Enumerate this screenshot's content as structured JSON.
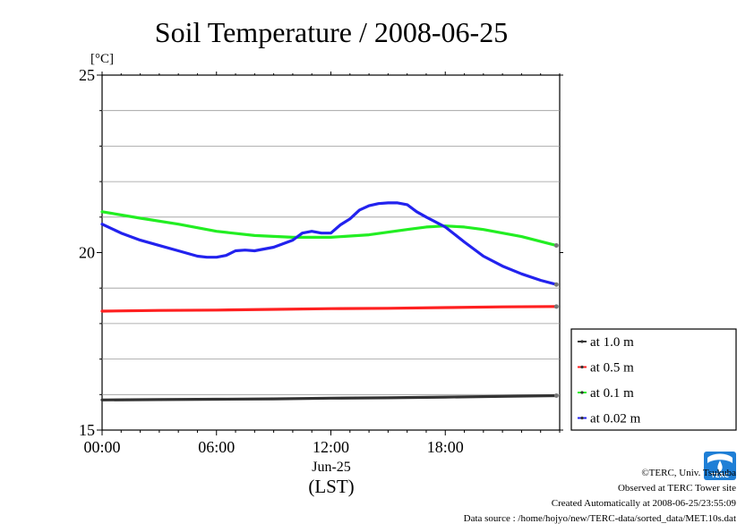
{
  "chart_data": {
    "type": "line",
    "title": "Soil Temperature / 2008-06-25",
    "ylabel": "[°C]",
    "xlabel": "(LST)",
    "date_label": "Jun-25",
    "ylim": [
      15,
      25
    ],
    "xlim": [
      0,
      24
    ],
    "y_ticks": [
      15,
      20,
      25
    ],
    "y_tick_labels": [
      "15",
      "20",
      "25"
    ],
    "y_grid": [
      16,
      17,
      18,
      19,
      21,
      22,
      23,
      24
    ],
    "x_ticks": [
      0,
      6,
      12,
      18
    ],
    "x_tick_labels": [
      "00:00",
      "06:00",
      "12:00",
      "18:00"
    ],
    "legend_position": "bottom-right, outside plot",
    "series": [
      {
        "name": "at 1.0 m",
        "color": "#333333",
        "x": [
          0,
          3,
          6,
          9,
          12,
          15,
          18,
          21,
          23.83
        ],
        "values": [
          15.85,
          15.86,
          15.87,
          15.88,
          15.9,
          15.91,
          15.93,
          15.95,
          15.97
        ]
      },
      {
        "name": "at 0.5 m",
        "color": "#ff2020",
        "x": [
          0,
          3,
          6,
          9,
          12,
          15,
          18,
          21,
          23.83
        ],
        "values": [
          18.35,
          18.37,
          18.38,
          18.4,
          18.42,
          18.43,
          18.45,
          18.47,
          18.48
        ]
      },
      {
        "name": "at 0.1 m",
        "color": "#22ee22",
        "x": [
          0,
          2,
          4,
          6,
          8,
          10,
          12,
          14,
          16,
          17,
          18,
          19,
          20,
          22,
          23.83
        ],
        "values": [
          21.15,
          20.97,
          20.8,
          20.6,
          20.48,
          20.43,
          20.43,
          20.5,
          20.65,
          20.72,
          20.75,
          20.72,
          20.65,
          20.45,
          20.2
        ]
      },
      {
        "name": "at 0.02 m",
        "color": "#2222ee",
        "x": [
          0,
          1,
          2,
          3,
          4,
          5,
          5.5,
          6,
          6.5,
          7,
          7.5,
          8,
          9,
          10,
          10.5,
          11,
          11.5,
          12,
          12.5,
          13,
          13.5,
          14,
          14.5,
          15,
          15.5,
          16,
          16.5,
          17,
          18,
          19,
          20,
          21,
          22,
          23,
          23.83
        ],
        "values": [
          20.8,
          20.55,
          20.35,
          20.2,
          20.05,
          19.9,
          19.87,
          19.87,
          19.92,
          20.05,
          20.07,
          20.05,
          20.15,
          20.35,
          20.55,
          20.6,
          20.55,
          20.55,
          20.78,
          20.95,
          21.2,
          21.32,
          21.38,
          21.4,
          21.4,
          21.35,
          21.15,
          21.0,
          20.72,
          20.3,
          19.9,
          19.62,
          19.4,
          19.22,
          19.1
        ]
      }
    ]
  },
  "credits": {
    "copyright": "©TERC, Univ. Tsukuba",
    "site": "Observed at TERC Tower site",
    "created": "Created Automatically at 2008-06-25/23:55:09",
    "source": "Data source : /home/hojyo/new/TERC-data/sorted_data/MET.10s.dat"
  },
  "logo": {
    "text": "TERC",
    "color": "#1f7fd6"
  }
}
